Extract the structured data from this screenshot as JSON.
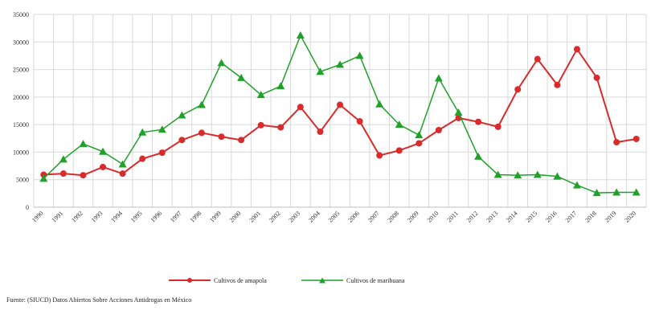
{
  "chart_data": {
    "type": "line",
    "title": "",
    "xlabel": "",
    "ylabel": "",
    "categories": [
      "1990",
      "1991",
      "1992",
      "1993",
      "1994",
      "1995",
      "1996",
      "1997",
      "1998",
      "1999",
      "2000",
      "2001",
      "2002",
      "2003",
      "2004",
      "2005",
      "2006",
      "2007",
      "2008",
      "2009",
      "2010",
      "2011",
      "2012",
      "2013",
      "2014",
      "2015",
      "2016",
      "2017",
      "2018",
      "2019",
      "2020"
    ],
    "y_ticks": [
      "0",
      "5000",
      "10000",
      "15000",
      "20000",
      "25000",
      "30000",
      "35000"
    ],
    "ylim": [
      0,
      35000
    ],
    "grid": true,
    "legend_position": "bottom",
    "series": [
      {
        "name": "Cultivos de amapola",
        "color": "#d92b2b",
        "marker": "circle",
        "values": [
          5900,
          6100,
          5800,
          7300,
          6100,
          8800,
          9900,
          12200,
          13500,
          12800,
          12200,
          14900,
          14500,
          18200,
          13700,
          18600,
          15600,
          9400,
          10300,
          11600,
          14000,
          16200,
          15500,
          14600,
          21400,
          26900,
          22200,
          28700,
          23500,
          11800,
          12400
        ]
      },
      {
        "name": "Cultivos de marihuana",
        "color": "#1fa12a",
        "marker": "triangle",
        "values": [
          5200,
          8700,
          11500,
          10100,
          7800,
          13600,
          14100,
          16700,
          18600,
          26200,
          23500,
          20400,
          22000,
          31200,
          24600,
          25900,
          27500,
          18700,
          15000,
          13100,
          23400,
          17200,
          9200,
          5900,
          5800,
          5900,
          5600,
          4000,
          2600,
          2700,
          2700
        ]
      }
    ]
  },
  "source": {
    "text": "Fuente: (SIUCD) Datos Abiertos Sobre Acciones Antidrogas en México"
  }
}
